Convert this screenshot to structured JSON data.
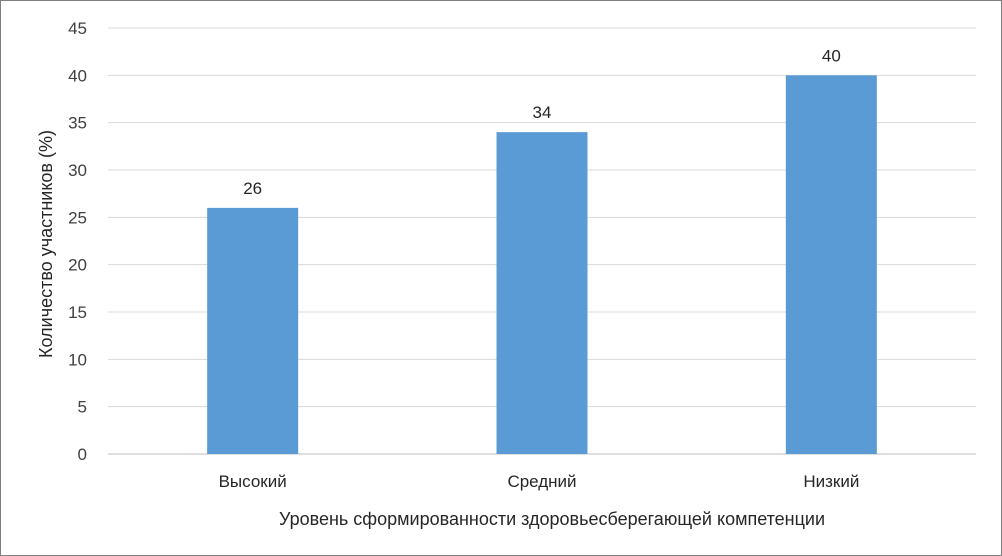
{
  "chart_data": {
    "type": "bar",
    "categories": [
      "Высокий",
      "Средний",
      "Низкий"
    ],
    "values": [
      26,
      34,
      40
    ],
    "data_labels": [
      "26",
      "34",
      "40"
    ],
    "title": "",
    "xlabel": "Уровень сформированности здоровьесберегающей компетенции",
    "ylabel": "Количество участников (%)",
    "ylim": [
      0,
      45
    ],
    "yticks": [
      0,
      5,
      10,
      15,
      20,
      25,
      30,
      35,
      40,
      45
    ],
    "grid": true,
    "legend": "none",
    "bar_color": "#5b9bd5"
  }
}
